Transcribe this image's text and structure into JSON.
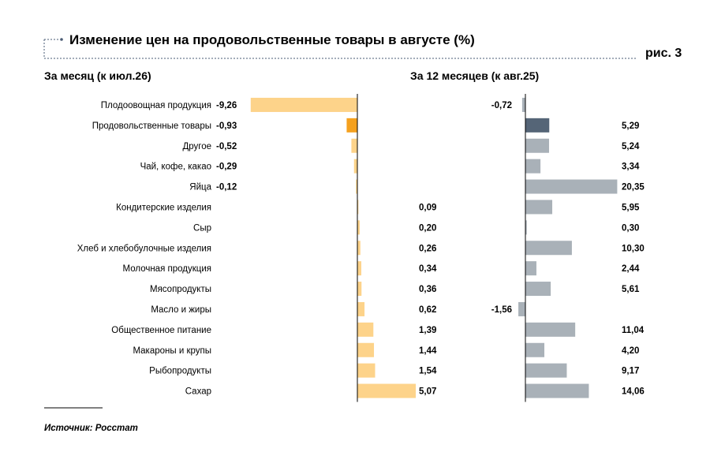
{
  "header": {
    "title": "Изменение цен на продовольственные товары в августе (%)",
    "figure_label": "рис. 3"
  },
  "source": "Источник: Росстат",
  "colors": {
    "month_bar": "#fdd38a",
    "month_highlight": "#f5a11e",
    "year_bar": "#a9b1b8",
    "year_highlight": "#556577",
    "title_accent": "#4a5b74",
    "axis": "#000000"
  },
  "chart_data": [
    {
      "type": "bar",
      "orientation": "horizontal",
      "title": "За месяц (к июл.26)",
      "categories": [
        "Плодоовощная продукция",
        "Продовольственные товары",
        "Другое",
        "Чай, кофе, какао",
        "Яйца",
        "Кондитерские изделия",
        "Сыр",
        "Хлеб и хлебобулочные изделия",
        "Молочная продукция",
        "Мясопродукты",
        "Масло и жиры",
        "Общественное питание",
        "Макароны и крупы",
        "Рыбопродукты",
        "Сахар"
      ],
      "values": [
        -9.26,
        -0.93,
        -0.52,
        -0.29,
        -0.12,
        0.09,
        0.2,
        0.26,
        0.34,
        0.36,
        0.62,
        1.39,
        1.44,
        1.54,
        5.07
      ],
      "labels": [
        "-9,26",
        "-0,93",
        "-0,52",
        "-0,29",
        "-0,12",
        "0,09",
        "0,20",
        "0,26",
        "0,34",
        "0,36",
        "0,62",
        "1,39",
        "1,44",
        "1,54",
        "5,07"
      ],
      "highlight_category": "Продовольственные товары",
      "grid": false,
      "legend": "none"
    },
    {
      "type": "bar",
      "orientation": "horizontal",
      "title": "За 12 месяцев (к авг.25)",
      "categories": [
        "Плодоовощная продукция",
        "Продовольственные товары",
        "Другое",
        "Чай, кофе, какао",
        "Яйца",
        "Кондитерские изделия",
        "Сыр",
        "Хлеб и хлебобулочные изделия",
        "Молочная продукция",
        "Мясопродукты",
        "Масло и жиры",
        "Общественное питание",
        "Макароны и крупы",
        "Рыбопродукты",
        "Сахар"
      ],
      "values": [
        -0.72,
        5.29,
        5.24,
        3.34,
        20.35,
        5.95,
        0.3,
        10.3,
        2.44,
        5.61,
        -1.56,
        11.04,
        4.2,
        9.17,
        14.06
      ],
      "labels": [
        "-0,72",
        "5,29",
        "5,24",
        "3,34",
        "20,35",
        "5,95",
        "0,30",
        "10,30",
        "2,44",
        "5,61",
        "-1,56",
        "11,04",
        "4,20",
        "9,17",
        "14,06"
      ],
      "highlight_category": "Продовольственные товары",
      "grid": false,
      "legend": "none"
    }
  ]
}
